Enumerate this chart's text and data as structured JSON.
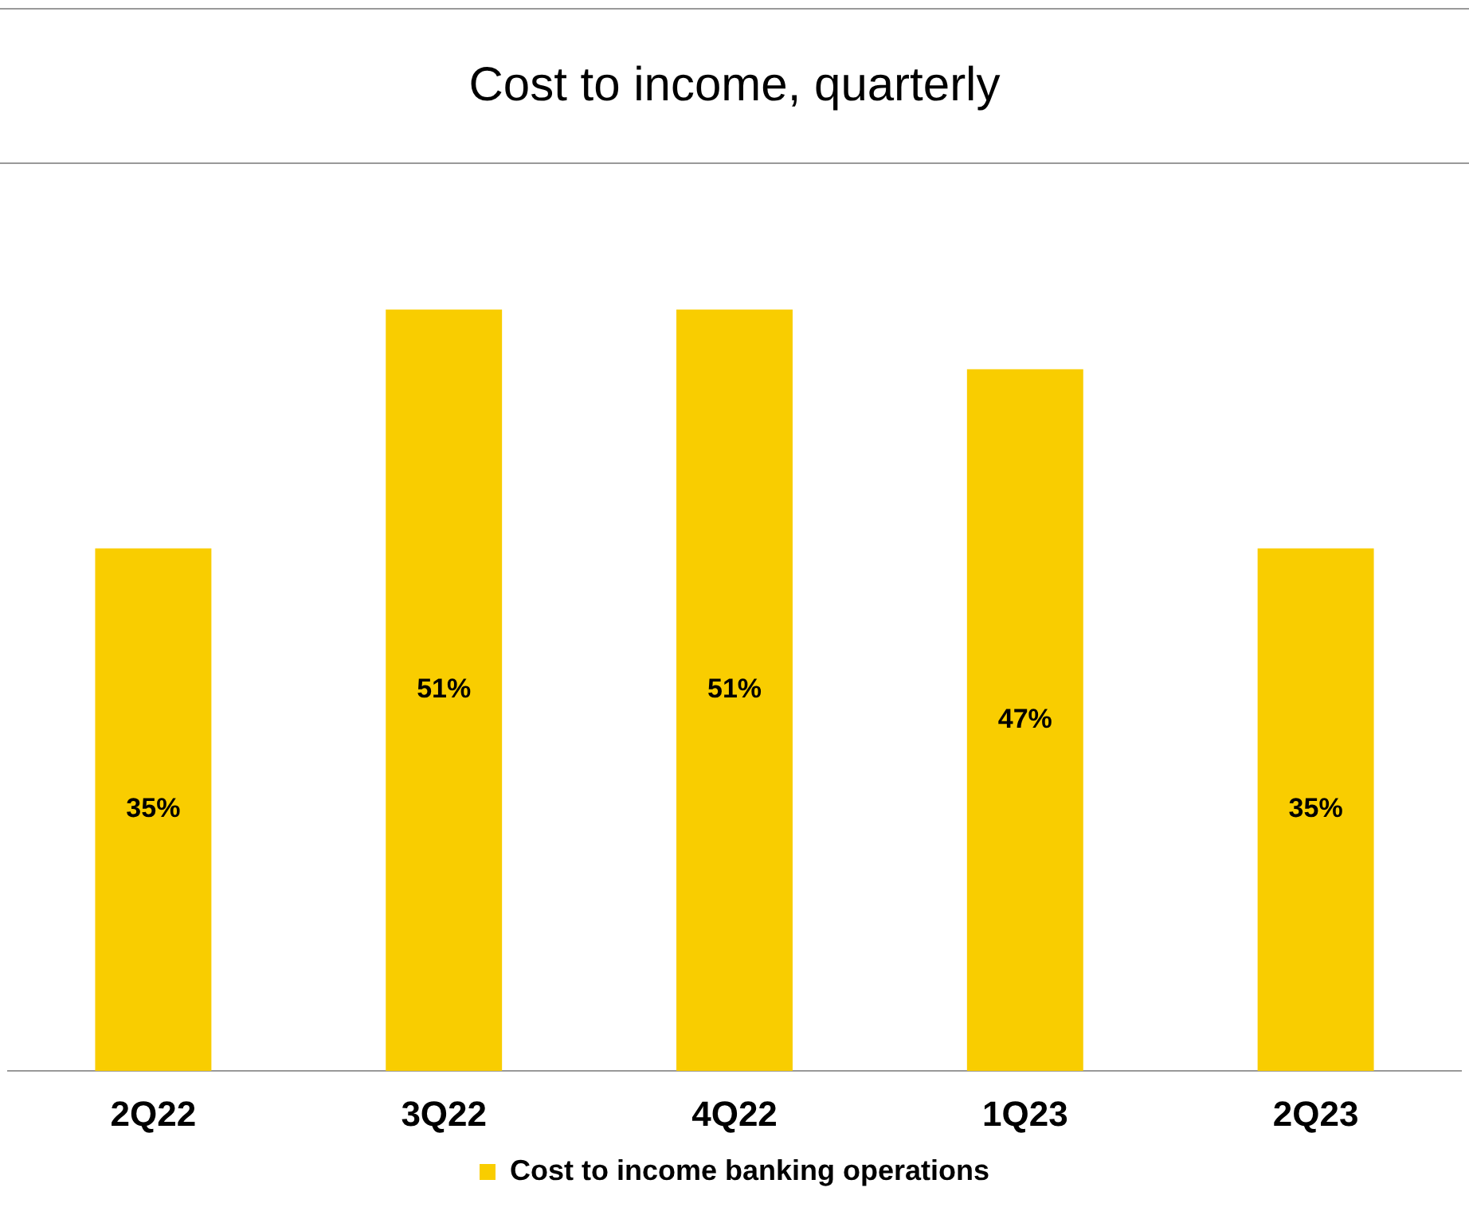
{
  "chart_data": {
    "type": "bar",
    "title": "Cost to income, quarterly",
    "categories": [
      "2Q22",
      "3Q22",
      "4Q22",
      "1Q23",
      "2Q23"
    ],
    "series": [
      {
        "name": "Cost to income banking operations",
        "color": "#f9cd00",
        "values": [
          35,
          51,
          51,
          47,
          35
        ],
        "value_labels": [
          "35%",
          "51%",
          "51%",
          "47%",
          "35%"
        ]
      }
    ],
    "legend": "bottom",
    "grid": false
  }
}
